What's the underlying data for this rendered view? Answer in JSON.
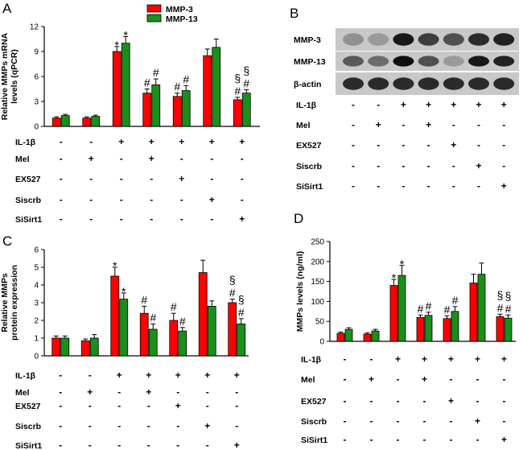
{
  "colors": {
    "mmp3": "#ff0000",
    "mmp13": "#1a8f1a",
    "axis": "#000000"
  },
  "treatment_rows": [
    "IL-1β",
    "Mel",
    "EX527",
    "Siscrb",
    "SiSirt1"
  ],
  "treatment_signs": [
    [
      "-",
      "-",
      "+",
      "+",
      "+",
      "+",
      "+"
    ],
    [
      "-",
      "+",
      "-",
      "+",
      "-",
      "-",
      "-"
    ],
    [
      "-",
      "-",
      "-",
      "-",
      "+",
      "-",
      "-"
    ],
    [
      "-",
      "-",
      "-",
      "-",
      "-",
      "+",
      "-"
    ],
    [
      "-",
      "-",
      "-",
      "-",
      "-",
      "-",
      "+"
    ]
  ],
  "panel_labels": [
    "A",
    "B",
    "C",
    "D"
  ],
  "chart_data": [
    {
      "panel": "A",
      "type": "bar",
      "ylabel_lines": [
        "Relative MMPs mRNA",
        "levels (qPCR)"
      ],
      "ylim": [
        0,
        12
      ],
      "yticks": [
        0,
        3,
        6,
        9,
        12
      ],
      "legend": [
        "MMP-3",
        "MMP-13"
      ],
      "series": [
        {
          "name": "MMP-3",
          "values": [
            1.0,
            1.0,
            9.0,
            4.0,
            3.6,
            8.5,
            3.2
          ],
          "errors": [
            0.15,
            0.15,
            0.6,
            0.5,
            0.4,
            0.8,
            0.3
          ]
        },
        {
          "name": "MMP-13",
          "values": [
            1.3,
            1.2,
            10.0,
            5.0,
            4.3,
            9.5,
            4.0
          ],
          "errors": [
            0.15,
            0.15,
            0.8,
            0.7,
            0.6,
            1.0,
            0.4
          ]
        }
      ],
      "annotations": [
        {
          "group": 2,
          "series": 0,
          "text": "*"
        },
        {
          "group": 2,
          "series": 1,
          "text": "*"
        },
        {
          "group": 3,
          "series": 0,
          "text": "#"
        },
        {
          "group": 3,
          "series": 1,
          "text": "#"
        },
        {
          "group": 4,
          "series": 0,
          "text": "#"
        },
        {
          "group": 4,
          "series": 1,
          "text": "#"
        },
        {
          "group": 6,
          "series": 0,
          "text": "#"
        },
        {
          "group": 6,
          "series": 1,
          "text": "#"
        },
        {
          "group": 6,
          "series": 0,
          "text": "§",
          "tier": 2
        },
        {
          "group": 6,
          "series": 1,
          "text": "§",
          "tier": 2
        }
      ]
    },
    {
      "panel": "C",
      "type": "bar",
      "ylabel_lines": [
        "Relative MMPs",
        "protein expression"
      ],
      "ylim": [
        0,
        6
      ],
      "yticks": [
        0,
        1,
        2,
        3,
        4,
        5,
        6
      ],
      "series": [
        {
          "name": "MMP-3",
          "values": [
            1.0,
            0.85,
            4.5,
            2.4,
            2.0,
            4.7,
            3.0
          ],
          "errors": [
            0.12,
            0.1,
            0.5,
            0.4,
            0.4,
            0.7,
            0.2
          ]
        },
        {
          "name": "MMP-13",
          "values": [
            1.0,
            1.0,
            3.2,
            1.5,
            1.4,
            2.8,
            1.8
          ],
          "errors": [
            0.12,
            0.2,
            0.35,
            0.3,
            0.2,
            0.3,
            0.3
          ]
        }
      ],
      "annotations": [
        {
          "group": 2,
          "series": 0,
          "text": "*"
        },
        {
          "group": 2,
          "series": 1,
          "text": "*"
        },
        {
          "group": 3,
          "series": 0,
          "text": "#"
        },
        {
          "group": 3,
          "series": 1,
          "text": "#"
        },
        {
          "group": 4,
          "series": 0,
          "text": "#"
        },
        {
          "group": 4,
          "series": 1,
          "text": "#"
        },
        {
          "group": 6,
          "series": 0,
          "text": "#"
        },
        {
          "group": 6,
          "series": 1,
          "text": "#"
        },
        {
          "group": 6,
          "series": 0,
          "text": "§",
          "tier": 2
        },
        {
          "group": 6,
          "series": 1,
          "text": "§",
          "tier": 2
        }
      ]
    },
    {
      "panel": "D",
      "type": "bar",
      "ylabel_lines": [
        "MMPs levels (ng/ml)"
      ],
      "ylim": [
        0,
        250
      ],
      "yticks": [
        0,
        50,
        100,
        150,
        200,
        250
      ],
      "series": [
        {
          "name": "MMP-3",
          "values": [
            20,
            18,
            140,
            60,
            57,
            146,
            62
          ],
          "errors": [
            3,
            3,
            15,
            6,
            7,
            22,
            6
          ]
        },
        {
          "name": "MMP-13",
          "values": [
            30,
            26,
            165,
            65,
            75,
            168,
            58
          ],
          "errors": [
            4,
            4,
            25,
            8,
            12,
            28,
            8
          ]
        }
      ],
      "annotations": [
        {
          "group": 2,
          "series": 0,
          "text": "*"
        },
        {
          "group": 2,
          "series": 1,
          "text": "*"
        },
        {
          "group": 3,
          "series": 0,
          "text": "#"
        },
        {
          "group": 3,
          "series": 1,
          "text": "#"
        },
        {
          "group": 4,
          "series": 0,
          "text": "#"
        },
        {
          "group": 4,
          "series": 1,
          "text": "#"
        },
        {
          "group": 6,
          "series": 0,
          "text": "#"
        },
        {
          "group": 6,
          "series": 1,
          "text": "#"
        },
        {
          "group": 6,
          "series": 0,
          "text": "§",
          "tier": 2
        },
        {
          "group": 6,
          "series": 1,
          "text": "§",
          "tier": 2
        }
      ]
    }
  ],
  "western_blot": {
    "panel": "B",
    "rows": [
      {
        "label": "MMP-3",
        "intensity": [
          0.3,
          0.25,
          0.95,
          0.75,
          0.65,
          0.85,
          0.9
        ]
      },
      {
        "label": "MMP-13",
        "intensity": [
          0.6,
          0.5,
          1.0,
          0.65,
          0.25,
          0.95,
          0.9
        ]
      },
      {
        "label": "β-actin",
        "intensity": [
          0.85,
          0.85,
          0.85,
          0.85,
          0.85,
          0.85,
          0.85
        ]
      }
    ]
  }
}
